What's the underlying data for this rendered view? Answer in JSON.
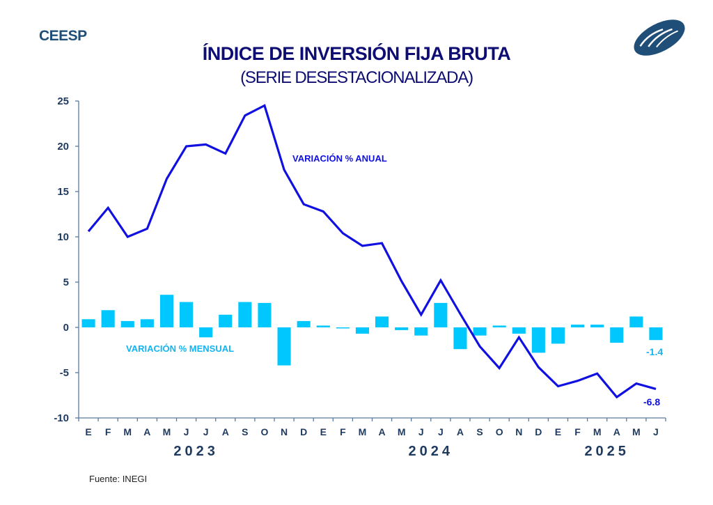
{
  "header": {
    "brand": "CEESP",
    "logo_icon": "ceesp-swirl-logo-icon",
    "title": "ÍNDICE DE INVERSIÓN FIJA BRUTA",
    "subtitle": "(SERIE DESESTACIONALIZADA)"
  },
  "footer": {
    "source": "Fuente: INEGI"
  },
  "colors": {
    "line": "#1010e0",
    "bars": "#00c8ff",
    "bar_label": "#14b4f0",
    "axis": "#5a7aa0",
    "text": "#1f3a5f",
    "title": "#0d0d73",
    "brand": "#1f4e79"
  },
  "chart_data": {
    "type": "bar+line",
    "title": "ÍNDICE DE INVERSIÓN FIJA BRUTA",
    "subtitle": "(SERIE DESESTACIONALIZADA)",
    "xlabel": "",
    "ylabel": "",
    "ylim": [
      -10,
      25
    ],
    "yticks": [
      -10,
      -5,
      0,
      5,
      10,
      15,
      20,
      25
    ],
    "grid": false,
    "categories": [
      "E",
      "F",
      "M",
      "A",
      "M",
      "J",
      "J",
      "A",
      "S",
      "O",
      "N",
      "D",
      "E",
      "F",
      "M",
      "A",
      "M",
      "J",
      "J",
      "A",
      "S",
      "O",
      "N",
      "D",
      "E",
      "F",
      "M",
      "A",
      "M",
      "J"
    ],
    "years": [
      {
        "label": "2023",
        "start_index": 0,
        "end_index": 11
      },
      {
        "label": "2024",
        "start_index": 12,
        "end_index": 23
      },
      {
        "label": "2025",
        "start_index": 24,
        "end_index": 29
      }
    ],
    "series": [
      {
        "name": "VARIACIÓN % ANUAL",
        "type": "line",
        "values": [
          10.6,
          13.2,
          10.0,
          10.9,
          16.4,
          20.0,
          20.2,
          19.2,
          23.4,
          24.5,
          17.4,
          13.6,
          12.8,
          10.4,
          9.0,
          9.3,
          5.1,
          1.4,
          5.2,
          1.5,
          -2.1,
          -4.5,
          -1.1,
          -4.4,
          -6.5,
          -5.9,
          -5.1,
          -7.7,
          -6.2,
          -6.8
        ],
        "end_label": "-6.8"
      },
      {
        "name": "VARIACIÓN % MENSUAL",
        "type": "bar",
        "values": [
          0.9,
          1.9,
          0.7,
          0.9,
          3.6,
          2.8,
          -1.1,
          1.4,
          2.8,
          2.7,
          -4.2,
          0.7,
          0.2,
          -0.1,
          -0.7,
          1.2,
          -0.3,
          -0.9,
          2.7,
          -2.4,
          -0.9,
          0.2,
          -0.7,
          -2.8,
          -1.8,
          0.3,
          0.3,
          -1.7,
          1.2,
          -1.4
        ],
        "end_label": "-1.4"
      }
    ]
  }
}
